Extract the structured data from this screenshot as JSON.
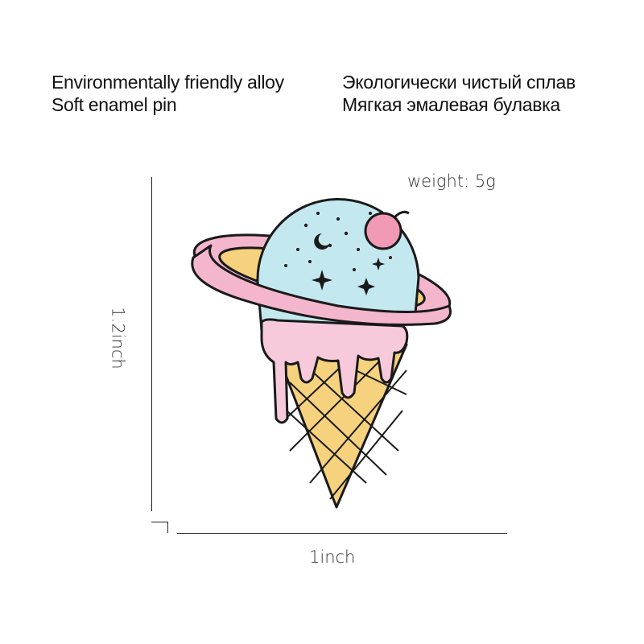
{
  "header": {
    "en_line1": "Environmentally friendly alloy",
    "en_line2": "Soft enamel pin",
    "ru_line1": "Экологически чистый сплав",
    "ru_line2": "Мягкая эмалевая булавка"
  },
  "specs": {
    "weight": "weight: 5g",
    "height": "1.2inch",
    "width": "1inch"
  },
  "colors": {
    "scoop": "#c4e8ef",
    "ring": "#f3b6cc",
    "drip": "#f6cadb",
    "cone": "#f6d27e",
    "cherry": "#f09ab6"
  }
}
